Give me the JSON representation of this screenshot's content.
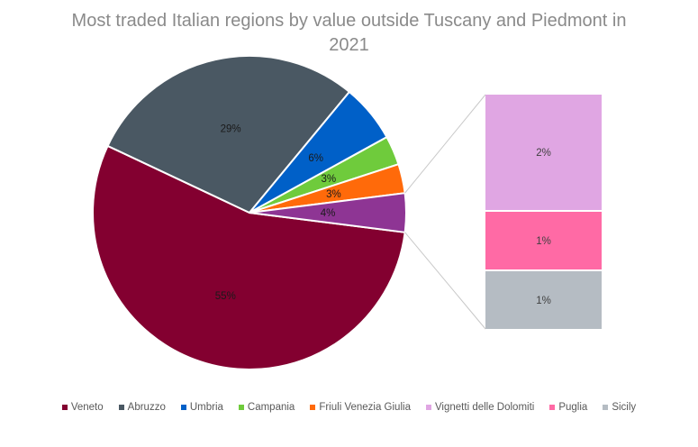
{
  "chart_data": {
    "type": "pie",
    "variant": "bar-of-pie",
    "title": "Most traded Italian regions by value outside Tuscany and Piedmont in 2021",
    "legend_position": "bottom",
    "slices": [
      {
        "name": "Veneto",
        "value": 55,
        "label": "55%",
        "color": "#830030",
        "group": "pie"
      },
      {
        "name": "Abruzzo",
        "value": 29,
        "label": "29%",
        "color": "#4a5863",
        "group": "pie"
      },
      {
        "name": "Umbria",
        "value": 6,
        "label": "6%",
        "color": "#0060c8",
        "group": "pie"
      },
      {
        "name": "Campania",
        "value": 3,
        "label": "3%",
        "color": "#6fcb3c",
        "group": "pie"
      },
      {
        "name": "Friuli Venezia Giulia",
        "value": 3,
        "label": "3%",
        "color": "#ff6a0a",
        "group": "pie"
      },
      {
        "name": "Vignetti delle Dolomiti",
        "value": 2,
        "label": "2%",
        "color": "#e0a6e3",
        "group": "bar"
      },
      {
        "name": "Puglia",
        "value": 1,
        "label": "1%",
        "color": "#ff6aa5",
        "group": "bar"
      },
      {
        "name": "Sicily",
        "value": 1,
        "label": "1%",
        "color": "#b5bcc3",
        "group": "bar"
      }
    ],
    "other_slice": {
      "label": "4%",
      "value": 4,
      "color": "#8e3594"
    }
  }
}
